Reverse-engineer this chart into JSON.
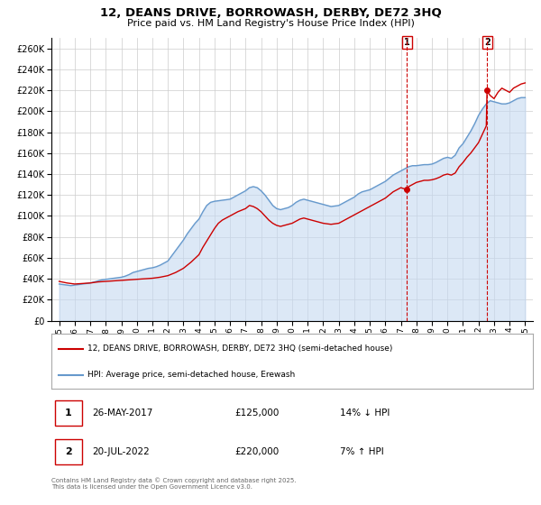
{
  "title": "12, DEANS DRIVE, BORROWASH, DERBY, DE72 3HQ",
  "subtitle": "Price paid vs. HM Land Registry's House Price Index (HPI)",
  "legend_property": "12, DEANS DRIVE, BORROWASH, DERBY, DE72 3HQ (semi-detached house)",
  "legend_hpi": "HPI: Average price, semi-detached house, Erewash",
  "property_color": "#cc0000",
  "hpi_color": "#6699cc",
  "hpi_fill_color": "#c5d9f1",
  "dashed_line_color": "#cc0000",
  "background_color": "#ffffff",
  "grid_color": "#cccccc",
  "ylim": [
    0,
    270000
  ],
  "yticks": [
    0,
    20000,
    40000,
    60000,
    80000,
    100000,
    120000,
    140000,
    160000,
    180000,
    200000,
    220000,
    240000,
    260000
  ],
  "xlim_start": 1994.5,
  "xlim_end": 2025.5,
  "annotation1": {
    "label": "1",
    "x": 2017.4,
    "y_price": 125000,
    "date": "26-MAY-2017",
    "price": "£125,000",
    "pct": "14% ↓ HPI"
  },
  "annotation2": {
    "label": "2",
    "x": 2022.55,
    "y_price": 220000,
    "date": "20-JUL-2022",
    "price": "£220,000",
    "pct": "7% ↑ HPI"
  },
  "footer": "Contains HM Land Registry data © Crown copyright and database right 2025.\nThis data is licensed under the Open Government Licence v3.0.",
  "hpi_data": [
    [
      1995,
      35000
    ],
    [
      1995.25,
      34500
    ],
    [
      1995.5,
      34000
    ],
    [
      1995.75,
      33500
    ],
    [
      1996,
      34000
    ],
    [
      1996.25,
      34500
    ],
    [
      1996.5,
      35000
    ],
    [
      1996.75,
      35500
    ],
    [
      1997,
      36000
    ],
    [
      1997.25,
      37000
    ],
    [
      1997.5,
      38000
    ],
    [
      1997.75,
      39000
    ],
    [
      1998,
      39500
    ],
    [
      1998.25,
      40000
    ],
    [
      1998.5,
      40500
    ],
    [
      1998.75,
      41000
    ],
    [
      1999,
      41500
    ],
    [
      1999.25,
      42500
    ],
    [
      1999.5,
      44000
    ],
    [
      1999.75,
      46000
    ],
    [
      2000,
      47000
    ],
    [
      2000.25,
      48000
    ],
    [
      2000.5,
      49000
    ],
    [
      2000.75,
      50000
    ],
    [
      2001,
      50500
    ],
    [
      2001.25,
      51500
    ],
    [
      2001.5,
      53000
    ],
    [
      2001.75,
      55000
    ],
    [
      2002,
      57000
    ],
    [
      2002.25,
      62000
    ],
    [
      2002.5,
      67000
    ],
    [
      2002.75,
      72000
    ],
    [
      2003,
      77000
    ],
    [
      2003.25,
      83000
    ],
    [
      2003.5,
      88000
    ],
    [
      2003.75,
      93000
    ],
    [
      2004,
      97000
    ],
    [
      2004.25,
      104000
    ],
    [
      2004.5,
      110000
    ],
    [
      2004.75,
      113000
    ],
    [
      2005,
      114000
    ],
    [
      2005.25,
      114500
    ],
    [
      2005.5,
      115000
    ],
    [
      2005.75,
      115500
    ],
    [
      2006,
      116000
    ],
    [
      2006.25,
      118000
    ],
    [
      2006.5,
      120000
    ],
    [
      2006.75,
      122000
    ],
    [
      2007,
      124000
    ],
    [
      2007.25,
      127000
    ],
    [
      2007.5,
      128000
    ],
    [
      2007.75,
      127000
    ],
    [
      2008,
      124000
    ],
    [
      2008.25,
      120000
    ],
    [
      2008.5,
      115000
    ],
    [
      2008.75,
      110000
    ],
    [
      2009,
      107000
    ],
    [
      2009.25,
      106000
    ],
    [
      2009.5,
      107000
    ],
    [
      2009.75,
      108000
    ],
    [
      2010,
      110000
    ],
    [
      2010.25,
      113000
    ],
    [
      2010.5,
      115000
    ],
    [
      2010.75,
      116000
    ],
    [
      2011,
      115000
    ],
    [
      2011.25,
      114000
    ],
    [
      2011.5,
      113000
    ],
    [
      2011.75,
      112000
    ],
    [
      2012,
      111000
    ],
    [
      2012.25,
      110000
    ],
    [
      2012.5,
      109000
    ],
    [
      2012.75,
      109500
    ],
    [
      2013,
      110000
    ],
    [
      2013.25,
      112000
    ],
    [
      2013.5,
      114000
    ],
    [
      2013.75,
      116000
    ],
    [
      2014,
      118000
    ],
    [
      2014.25,
      121000
    ],
    [
      2014.5,
      123000
    ],
    [
      2014.75,
      124000
    ],
    [
      2015,
      125000
    ],
    [
      2015.25,
      127000
    ],
    [
      2015.5,
      129000
    ],
    [
      2015.75,
      131000
    ],
    [
      2016,
      133000
    ],
    [
      2016.25,
      136000
    ],
    [
      2016.5,
      139000
    ],
    [
      2016.75,
      141000
    ],
    [
      2017,
      143000
    ],
    [
      2017.25,
      145000
    ],
    [
      2017.5,
      147000
    ],
    [
      2017.75,
      148000
    ],
    [
      2018,
      148000
    ],
    [
      2018.25,
      148500
    ],
    [
      2018.5,
      149000
    ],
    [
      2018.75,
      149000
    ],
    [
      2019,
      149500
    ],
    [
      2019.25,
      151000
    ],
    [
      2019.5,
      153000
    ],
    [
      2019.75,
      155000
    ],
    [
      2020,
      156000
    ],
    [
      2020.25,
      155000
    ],
    [
      2020.5,
      158000
    ],
    [
      2020.75,
      165000
    ],
    [
      2021,
      169000
    ],
    [
      2021.25,
      175000
    ],
    [
      2021.5,
      181000
    ],
    [
      2021.75,
      188000
    ],
    [
      2022,
      196000
    ],
    [
      2022.25,
      202000
    ],
    [
      2022.5,
      207000
    ],
    [
      2022.75,
      210000
    ],
    [
      2023,
      209000
    ],
    [
      2023.25,
      208000
    ],
    [
      2023.5,
      207000
    ],
    [
      2023.75,
      207000
    ],
    [
      2024,
      208000
    ],
    [
      2024.25,
      210000
    ],
    [
      2024.5,
      212000
    ],
    [
      2024.75,
      213000
    ],
    [
      2025,
      213000
    ]
  ],
  "property_data": [
    [
      1995,
      37500
    ],
    [
      1995.5,
      36000
    ],
    [
      1996,
      35000
    ],
    [
      1996.5,
      35500
    ],
    [
      1997,
      36000
    ],
    [
      1997.5,
      37000
    ],
    [
      1998,
      37500
    ],
    [
      1998.5,
      38000
    ],
    [
      1999,
      38500
    ],
    [
      1999.5,
      39000
    ],
    [
      2000,
      39500
    ],
    [
      2000.5,
      40000
    ],
    [
      2001,
      40500
    ],
    [
      2001.5,
      41500
    ],
    [
      2002,
      43000
    ],
    [
      2002.5,
      46000
    ],
    [
      2003,
      50000
    ],
    [
      2003.5,
      56000
    ],
    [
      2004,
      63000
    ],
    [
      2004.25,
      70000
    ],
    [
      2004.5,
      76000
    ],
    [
      2004.75,
      82000
    ],
    [
      2005,
      88000
    ],
    [
      2005.25,
      93000
    ],
    [
      2005.5,
      96000
    ],
    [
      2005.75,
      98000
    ],
    [
      2006,
      100000
    ],
    [
      2006.5,
      104000
    ],
    [
      2007,
      107000
    ],
    [
      2007.25,
      110000
    ],
    [
      2007.5,
      109000
    ],
    [
      2007.75,
      107000
    ],
    [
      2008,
      104000
    ],
    [
      2008.25,
      100000
    ],
    [
      2008.5,
      96000
    ],
    [
      2008.75,
      93000
    ],
    [
      2009,
      91000
    ],
    [
      2009.25,
      90000
    ],
    [
      2009.5,
      91000
    ],
    [
      2009.75,
      92000
    ],
    [
      2010,
      93000
    ],
    [
      2010.25,
      95000
    ],
    [
      2010.5,
      97000
    ],
    [
      2010.75,
      98000
    ],
    [
      2011,
      97000
    ],
    [
      2011.25,
      96000
    ],
    [
      2011.5,
      95000
    ],
    [
      2011.75,
      94000
    ],
    [
      2012,
      93000
    ],
    [
      2012.25,
      92500
    ],
    [
      2012.5,
      92000
    ],
    [
      2012.75,
      92500
    ],
    [
      2013,
      93000
    ],
    [
      2013.25,
      95000
    ],
    [
      2013.5,
      97000
    ],
    [
      2013.75,
      99000
    ],
    [
      2014,
      101000
    ],
    [
      2014.25,
      103000
    ],
    [
      2014.5,
      105000
    ],
    [
      2014.75,
      107000
    ],
    [
      2015,
      109000
    ],
    [
      2015.25,
      111000
    ],
    [
      2015.5,
      113000
    ],
    [
      2015.75,
      115000
    ],
    [
      2016,
      117000
    ],
    [
      2016.25,
      120000
    ],
    [
      2016.5,
      123000
    ],
    [
      2016.75,
      125000
    ],
    [
      2017,
      127000
    ],
    [
      2017.4,
      125000
    ],
    [
      2017.5,
      128000
    ],
    [
      2017.75,
      130000
    ],
    [
      2018,
      132000
    ],
    [
      2018.25,
      133000
    ],
    [
      2018.5,
      134000
    ],
    [
      2018.75,
      134000
    ],
    [
      2019,
      134500
    ],
    [
      2019.25,
      135500
    ],
    [
      2019.5,
      137000
    ],
    [
      2019.75,
      139000
    ],
    [
      2020,
      140000
    ],
    [
      2020.25,
      139000
    ],
    [
      2020.5,
      141000
    ],
    [
      2020.75,
      147000
    ],
    [
      2021,
      151000
    ],
    [
      2021.25,
      156000
    ],
    [
      2021.5,
      160000
    ],
    [
      2021.75,
      165000
    ],
    [
      2022,
      170000
    ],
    [
      2022.25,
      178000
    ],
    [
      2022.5,
      186000
    ],
    [
      2022.55,
      220000
    ],
    [
      2022.6,
      218000
    ],
    [
      2022.75,
      215000
    ],
    [
      2023,
      212000
    ],
    [
      2023.25,
      218000
    ],
    [
      2023.5,
      222000
    ],
    [
      2023.75,
      220000
    ],
    [
      2024,
      218000
    ],
    [
      2024.25,
      222000
    ],
    [
      2024.5,
      224000
    ],
    [
      2024.75,
      226000
    ],
    [
      2025,
      227000
    ]
  ]
}
